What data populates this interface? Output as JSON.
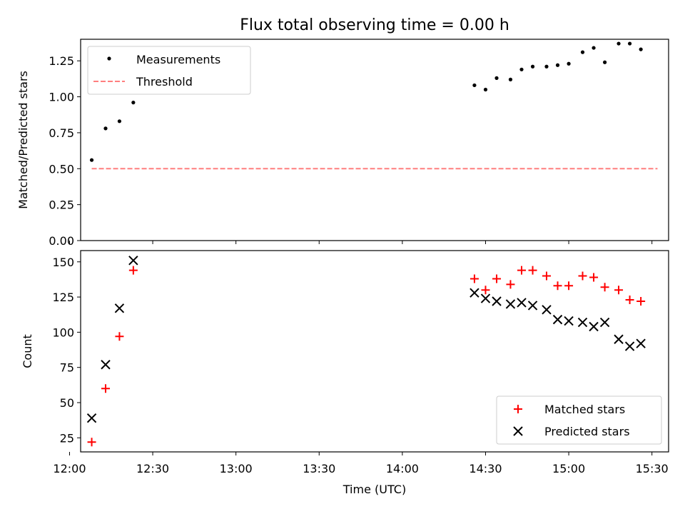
{
  "chart_data": [
    {
      "type": "scatter",
      "title": "Flux total observing time = 0.00 h",
      "xlabel": "",
      "ylabel": "Matched/Predicted stars",
      "xlim": [
        "12:04",
        "15:36"
      ],
      "ylim": [
        0,
        1.4
      ],
      "yticks": [
        "0.00",
        "0.25",
        "0.50",
        "0.75",
        "1.00",
        "1.25"
      ],
      "grid": false,
      "legend_position": "top-left",
      "series": [
        {
          "name": "Measurements",
          "color": "#000000",
          "marker": "dot",
          "points": [
            {
              "x": "12:08",
              "y": 0.56
            },
            {
              "x": "12:13",
              "y": 0.78
            },
            {
              "x": "12:18",
              "y": 0.83
            },
            {
              "x": "12:23",
              "y": 0.96
            },
            {
              "x": "14:26",
              "y": 1.08
            },
            {
              "x": "14:30",
              "y": 1.05
            },
            {
              "x": "14:34",
              "y": 1.13
            },
            {
              "x": "14:39",
              "y": 1.12
            },
            {
              "x": "14:43",
              "y": 1.19
            },
            {
              "x": "14:47",
              "y": 1.21
            },
            {
              "x": "14:52",
              "y": 1.21
            },
            {
              "x": "14:56",
              "y": 1.22
            },
            {
              "x": "15:00",
              "y": 1.23
            },
            {
              "x": "15:05",
              "y": 1.31
            },
            {
              "x": "15:09",
              "y": 1.34
            },
            {
              "x": "15:13",
              "y": 1.24
            },
            {
              "x": "15:18",
              "y": 1.37
            },
            {
              "x": "15:22",
              "y": 1.37
            },
            {
              "x": "15:26",
              "y": 1.33
            }
          ]
        },
        {
          "name": "Threshold",
          "color": "#ff7f7f",
          "style": "dashed",
          "points": [
            {
              "x": "12:08",
              "y": 0.5
            },
            {
              "x": "15:32",
              "y": 0.5
            }
          ]
        }
      ]
    },
    {
      "type": "scatter",
      "title": "",
      "xlabel": "Time (UTC)",
      "ylabel": "Count",
      "xlim": [
        "12:04",
        "15:36"
      ],
      "ylim": [
        15,
        158
      ],
      "xticks": [
        "12:00",
        "12:30",
        "13:00",
        "13:30",
        "14:00",
        "14:30",
        "15:00",
        "15:30"
      ],
      "yticks": [
        "25",
        "50",
        "75",
        "100",
        "125",
        "150"
      ],
      "grid": false,
      "legend_position": "bottom-right",
      "series": [
        {
          "name": "Matched stars",
          "color": "#ff0000",
          "marker": "plus",
          "points": [
            {
              "x": "12:08",
              "y": 22
            },
            {
              "x": "12:13",
              "y": 60
            },
            {
              "x": "12:18",
              "y": 97
            },
            {
              "x": "12:23",
              "y": 144
            },
            {
              "x": "14:26",
              "y": 138
            },
            {
              "x": "14:30",
              "y": 130
            },
            {
              "x": "14:34",
              "y": 138
            },
            {
              "x": "14:39",
              "y": 134
            },
            {
              "x": "14:43",
              "y": 144
            },
            {
              "x": "14:47",
              "y": 144
            },
            {
              "x": "14:52",
              "y": 140
            },
            {
              "x": "14:56",
              "y": 133
            },
            {
              "x": "15:00",
              "y": 133
            },
            {
              "x": "15:05",
              "y": 140
            },
            {
              "x": "15:09",
              "y": 139
            },
            {
              "x": "15:13",
              "y": 132
            },
            {
              "x": "15:18",
              "y": 130
            },
            {
              "x": "15:22",
              "y": 123
            },
            {
              "x": "15:26",
              "y": 122
            }
          ]
        },
        {
          "name": "Predicted stars",
          "color": "#000000",
          "marker": "x",
          "points": [
            {
              "x": "12:08",
              "y": 39
            },
            {
              "x": "12:13",
              "y": 77
            },
            {
              "x": "12:18",
              "y": 117
            },
            {
              "x": "12:23",
              "y": 151
            },
            {
              "x": "14:26",
              "y": 128
            },
            {
              "x": "14:30",
              "y": 124
            },
            {
              "x": "14:34",
              "y": 122
            },
            {
              "x": "14:39",
              "y": 120
            },
            {
              "x": "14:43",
              "y": 121
            },
            {
              "x": "14:47",
              "y": 119
            },
            {
              "x": "14:52",
              "y": 116
            },
            {
              "x": "14:56",
              "y": 109
            },
            {
              "x": "15:00",
              "y": 108
            },
            {
              "x": "15:05",
              "y": 107
            },
            {
              "x": "15:09",
              "y": 104
            },
            {
              "x": "15:13",
              "y": 107
            },
            {
              "x": "15:18",
              "y": 95
            },
            {
              "x": "15:22",
              "y": 90
            },
            {
              "x": "15:26",
              "y": 92
            }
          ]
        }
      ]
    }
  ]
}
